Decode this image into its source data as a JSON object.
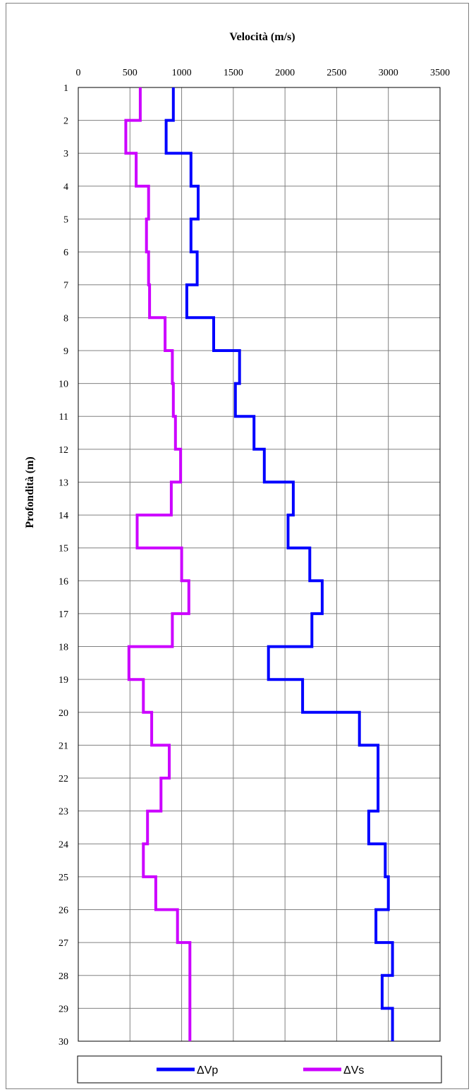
{
  "chart_data": {
    "type": "line",
    "title": "Velocità (m/s)",
    "xlabel": "Velocità (m/s)",
    "ylabel": "Profondità (m)",
    "x_ticks": [
      "0",
      "500",
      "1000",
      "1500",
      "2000",
      "2500",
      "3000",
      "3500"
    ],
    "y_ticks": [
      "1",
      "2",
      "3",
      "4",
      "5",
      "6",
      "7",
      "8",
      "9",
      "10",
      "11",
      "12",
      "13",
      "14",
      "15",
      "16",
      "17",
      "18",
      "19",
      "20",
      "21",
      "22",
      "23",
      "24",
      "25",
      "26",
      "27",
      "28",
      "29",
      "30"
    ],
    "xlim": [
      0,
      3500
    ],
    "ylim": [
      1,
      30
    ],
    "y_inverted": true,
    "x_axis_position": "top",
    "grid": true,
    "legend_position": "bottom",
    "step_style": "depth-intervals",
    "depth_boundaries": [
      1,
      2,
      3,
      4,
      5,
      6,
      7,
      8,
      9,
      10,
      11,
      12,
      13,
      14,
      15,
      16,
      17,
      18,
      19,
      20,
      21,
      22,
      23,
      24,
      25,
      26,
      27,
      28,
      29,
      30
    ],
    "series": [
      {
        "name": "ΔVp",
        "color": "#0000ff",
        "values": [
          920,
          850,
          1090,
          1160,
          1090,
          1150,
          1050,
          1310,
          1560,
          1520,
          1700,
          1800,
          2080,
          2030,
          2240,
          2360,
          2260,
          1840,
          2170,
          2720,
          2900,
          2900,
          2810,
          2970,
          3000,
          2880,
          3040,
          2940,
          3040
        ]
      },
      {
        "name": "ΔVs",
        "color": "#cc00ff",
        "values": [
          600,
          460,
          560,
          680,
          660,
          680,
          690,
          840,
          910,
          920,
          940,
          990,
          900,
          570,
          1000,
          1070,
          910,
          490,
          630,
          710,
          880,
          800,
          670,
          630,
          750,
          960,
          1080,
          1080,
          1080
        ]
      }
    ]
  }
}
